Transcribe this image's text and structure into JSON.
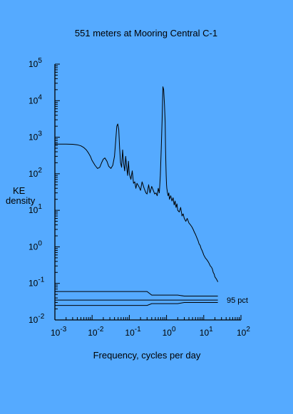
{
  "chart_data": {
    "type": "line",
    "title": "551 meters at Mooring Central C-1",
    "xlabel": "Frequency, cycles per day",
    "ylabel_lines": [
      "KE",
      "density"
    ],
    "x_scale": "log",
    "y_scale": "log",
    "xlim": [
      0.001,
      100
    ],
    "ylim": [
      0.01,
      100000
    ],
    "x_ticks": [
      {
        "value": 0.001,
        "base": "10",
        "exp": "-3"
      },
      {
        "value": 0.01,
        "base": "10",
        "exp": "-2"
      },
      {
        "value": 0.1,
        "base": "10",
        "exp": "-1"
      },
      {
        "value": 1,
        "base": "10",
        "exp": "0"
      },
      {
        "value": 10,
        "base": "10",
        "exp": "1"
      },
      {
        "value": 100,
        "base": "10",
        "exp": "2"
      }
    ],
    "y_ticks": [
      {
        "value": 0.01,
        "base": "10",
        "exp": "-2"
      },
      {
        "value": 0.1,
        "base": "10",
        "exp": "-1"
      },
      {
        "value": 1,
        "base": "10",
        "exp": "0"
      },
      {
        "value": 10,
        "base": "10",
        "exp": "1"
      },
      {
        "value": 100,
        "base": "10",
        "exp": "2"
      },
      {
        "value": 1000,
        "base": "10",
        "exp": "3"
      },
      {
        "value": 10000,
        "base": "10",
        "exp": "4"
      },
      {
        "value": 100000,
        "base": "10",
        "exp": "5"
      }
    ],
    "grid": false,
    "series": [
      {
        "x": [
          0.001,
          0.002,
          0.003,
          0.004,
          0.005,
          0.006,
          0.007,
          0.008,
          0.009,
          0.01,
          0.012,
          0.014,
          0.016,
          0.018,
          0.02,
          0.022,
          0.025,
          0.028,
          0.032,
          0.036,
          0.04,
          0.043,
          0.046,
          0.049,
          0.052,
          0.055,
          0.058,
          0.062,
          0.066,
          0.07,
          0.075,
          0.08,
          0.085,
          0.09,
          0.095,
          0.1,
          0.11,
          0.12,
          0.13,
          0.14,
          0.15,
          0.16,
          0.18,
          0.2,
          0.22,
          0.25,
          0.28,
          0.3,
          0.33,
          0.36,
          0.4,
          0.44,
          0.48,
          0.52,
          0.56,
          0.6,
          0.64,
          0.68,
          0.72,
          0.76,
          0.8,
          0.84,
          0.88,
          0.92,
          0.94,
          0.96,
          0.98,
          1.0,
          1.02,
          1.04,
          1.06,
          1.1,
          1.15,
          1.2,
          1.3,
          1.4,
          1.5,
          1.6,
          1.7,
          1.8,
          1.9,
          2.0,
          2.2,
          2.4,
          2.6,
          2.8,
          3.0,
          3.3,
          3.6,
          4.0,
          4.4,
          4.8,
          5.2,
          5.6,
          6.0,
          6.5,
          7.0,
          7.5,
          8.0,
          8.5,
          9.0,
          9.5,
          10,
          11,
          12,
          13,
          14,
          15,
          16,
          17,
          18,
          19,
          20,
          21,
          22,
          23,
          24
        ],
        "values": [
          650,
          650,
          640,
          620,
          580,
          520,
          450,
          370,
          300,
          230,
          170,
          140,
          150,
          200,
          250,
          270,
          220,
          160,
          140,
          170,
          300,
          800,
          2000,
          2300,
          1600,
          500,
          200,
          150,
          450,
          200,
          120,
          300,
          150,
          90,
          220,
          100,
          70,
          120,
          55,
          60,
          40,
          55,
          45,
          35,
          60,
          40,
          30,
          28,
          50,
          30,
          45,
          35,
          28,
          30,
          25,
          40,
          30,
          90,
          500,
          3000,
          24000,
          20000,
          8000,
          2500,
          500,
          180,
          90,
          50,
          40,
          35,
          30,
          25,
          30,
          20,
          25,
          18,
          22,
          14,
          18,
          12,
          15,
          10,
          9,
          12,
          7,
          8,
          6,
          5,
          6,
          4.5,
          4,
          3.5,
          3,
          2.5,
          2.2,
          1.8,
          1.5,
          1.2,
          1.1,
          0.9,
          0.8,
          0.7,
          0.6,
          0.5,
          0.45,
          0.4,
          0.35,
          0.3,
          0.28,
          0.25,
          0.2,
          0.18,
          0.15,
          0.14,
          0.13,
          0.12,
          0.11
        ]
      }
    ],
    "confidence_levels": [
      {
        "values": [
          0.06,
          0.06,
          0.06,
          0.06,
          0.06,
          0.06,
          0.048,
          0.048,
          0.045,
          0.045
        ]
      },
      {
        "values": [
          0.035,
          0.035,
          0.035,
          0.035,
          0.035,
          0.035,
          0.035,
          0.035,
          0.035,
          0.035
        ]
      },
      {
        "values": [
          0.025,
          0.025,
          0.025,
          0.025,
          0.025,
          0.025,
          0.028,
          0.028,
          0.03,
          0.03
        ]
      }
    ],
    "confidence_x": [
      0.001,
      0.003,
      0.01,
      0.03,
      0.1,
      0.3,
      0.4,
      2,
      3,
      24
    ],
    "annotations": [
      {
        "text": "95 pct"
      }
    ]
  }
}
